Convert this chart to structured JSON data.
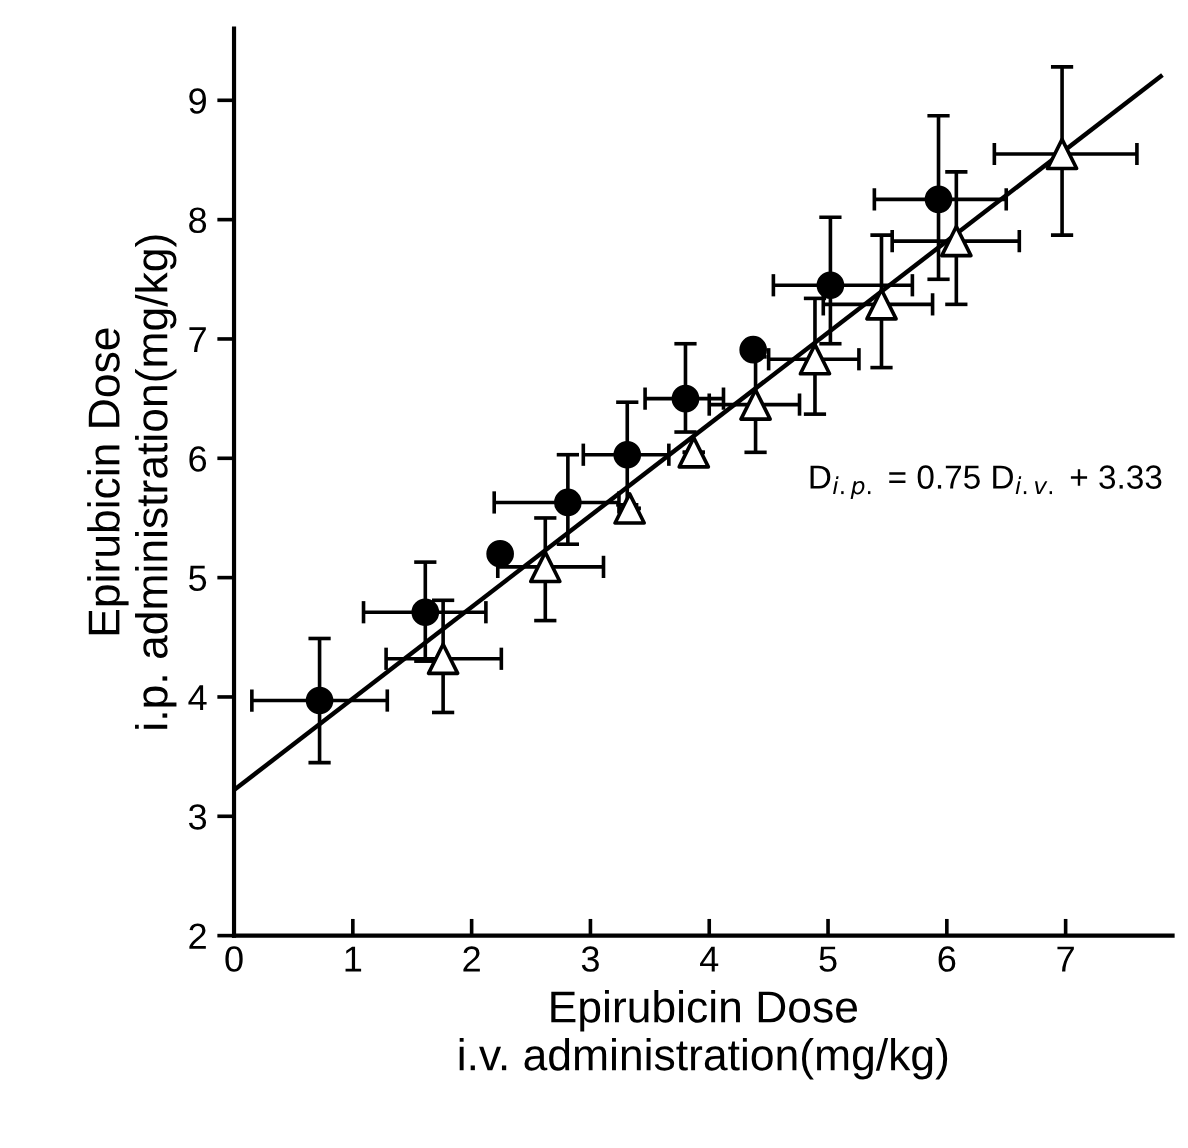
{
  "chart_data": {
    "type": "scatter",
    "xlabel": "Epirubicin Dose\ni.v. administration(mg/kg)",
    "ylabel": "Epirubicin Dose\ni.p. administration(mg/kg)",
    "xlim": [
      0,
      7.9
    ],
    "ylim": [
      2,
      9.6
    ],
    "xticks": [
      0,
      1,
      2,
      3,
      4,
      5,
      6,
      7
    ],
    "yticks": [
      2,
      3,
      4,
      5,
      6,
      7,
      8,
      9
    ],
    "grid": false,
    "annotations": [
      "D$_{i.p.}$ = 0.75 D$_{i.v.}$ + 3.33"
    ],
    "series": [
      {
        "marker": "circle",
        "color": "#000000",
        "x": [
          0.72,
          1.61,
          2.24,
          2.81,
          3.31,
          3.8,
          4.37,
          5.02,
          5.93
        ],
        "values": [
          3.97,
          4.71,
          5.2,
          5.63,
          6.03,
          6.5,
          6.91,
          7.45,
          8.17
        ],
        "errors": [
          [
            3.45,
            4.49
          ],
          [
            4.3,
            5.13
          ],
          null,
          [
            5.28,
            6.03
          ],
          [
            5.61,
            6.47
          ],
          [
            6.22,
            6.96
          ],
          null,
          [
            6.96,
            8.02
          ],
          [
            7.5,
            8.87
          ]
        ],
        "xerrors": [
          [
            0.15,
            1.29
          ],
          [
            1.09,
            2.12
          ],
          null,
          [
            2.19,
            3.24
          ],
          [
            2.94,
            3.66
          ],
          [
            3.46,
            4.12
          ],
          null,
          [
            4.54,
            5.71
          ],
          [
            5.39,
            6.5
          ]
        ]
      },
      {
        "marker": "triangle",
        "color": "#000000",
        "x": [
          1.76,
          2.62,
          3.33,
          3.87,
          4.39,
          4.89,
          5.45,
          6.08,
          6.97
        ],
        "values": [
          4.32,
          5.09,
          5.58,
          6.05,
          6.45,
          6.83,
          7.29,
          7.82,
          8.55
        ],
        "errors": [
          [
            3.87,
            4.81
          ],
          [
            4.64,
            5.5
          ],
          null,
          null,
          [
            6.05,
            6.85
          ],
          [
            6.37,
            7.34
          ],
          [
            6.76,
            7.87
          ],
          [
            7.29,
            8.4
          ],
          [
            7.87,
            9.28
          ]
        ],
        "xerrors": [
          [
            1.28,
            2.25
          ],
          [
            2.22,
            3.11
          ],
          null,
          null,
          [
            4.0,
            4.76
          ],
          [
            4.5,
            5.26
          ],
          [
            4.96,
            5.88
          ],
          [
            5.54,
            6.61
          ],
          [
            6.4,
            7.6
          ]
        ]
      },
      {
        "type": "line",
        "line_style": "solid",
        "color": "#000000",
        "x": [
          0,
          7.8
        ],
        "values": [
          3.22,
          9.2
        ]
      }
    ]
  }
}
